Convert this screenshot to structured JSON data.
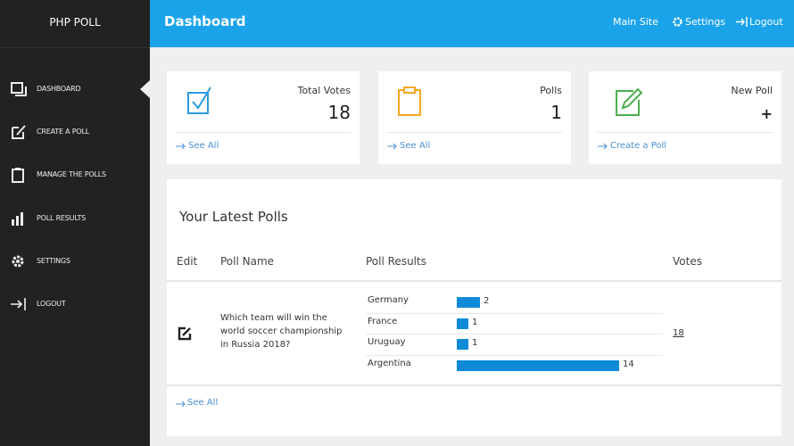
{
  "brand": "PHP POLL",
  "header": {
    "title": "Dashboard",
    "links": [
      "Main Site",
      "Settings",
      "Logout"
    ]
  },
  "sidebar": {
    "items": [
      "DASHBOARD",
      "CREATE A POLL",
      "MANAGE THE POLLS",
      "POLL RESULTS",
      "SETTINGS",
      "LOGOUT"
    ]
  },
  "cards": [
    {
      "label": "Total Votes",
      "value": 18,
      "link": "See All"
    },
    {
      "label": "Polls",
      "value": 1,
      "link": "See All"
    },
    {
      "label": "New Poll",
      "value": "+",
      "link": "Create a Poll"
    }
  ],
  "latest_polls": {
    "title": "Your Latest Polls",
    "columns": [
      "Edit",
      "Poll Name",
      "Poll Results",
      "Votes"
    ],
    "rows": [
      {
        "name": "Which team will win the world soccer championship in Russia 2018?",
        "results": [
          {
            "option": "Germany",
            "votes": 2
          },
          {
            "option": "France",
            "votes": 1
          },
          {
            "option": "Uruguay",
            "votes": 1
          },
          {
            "option": "Argentina",
            "votes": 14
          }
        ],
        "votes": 18
      }
    ],
    "link": "See All"
  }
}
